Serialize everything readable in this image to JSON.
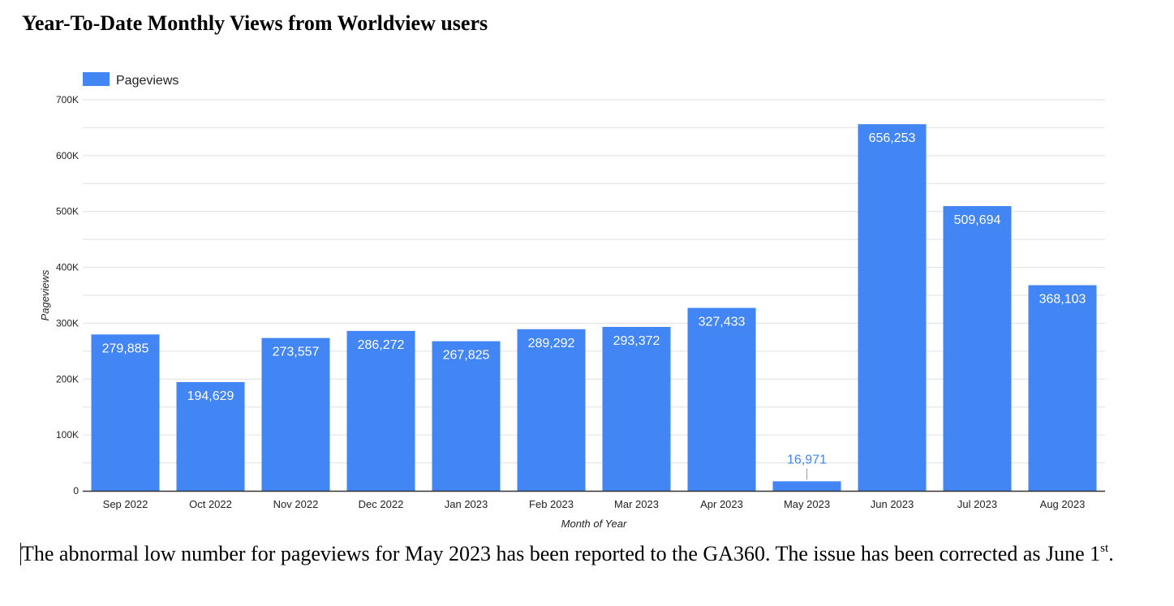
{
  "title": "Year-To-Date Monthly Views from Worldview users",
  "chart_data": {
    "type": "bar",
    "categories": [
      "Sep 2022",
      "Oct 2022",
      "Nov 2022",
      "Dec 2022",
      "Jan 2023",
      "Feb 2023",
      "Mar 2023",
      "Apr 2023",
      "May 2023",
      "Jun 2023",
      "Jul 2023",
      "Aug 2023"
    ],
    "series": [
      {
        "name": "Pageviews",
        "values": [
          279885,
          194629,
          273557,
          286272,
          267825,
          289292,
          293372,
          327433,
          16971,
          656253,
          509694,
          368103
        ],
        "labels": [
          "279,885",
          "194,629",
          "273,557",
          "286,272",
          "267,825",
          "289,292",
          "293,372",
          "327,433",
          "16,971",
          "656,253",
          "509,694",
          "368,103"
        ],
        "color": "#4285F4"
      }
    ],
    "xlabel": "Month of Year",
    "ylabel": "Pageviews",
    "ylim": [
      0,
      700000
    ],
    "yticks": [
      0,
      100000,
      200000,
      300000,
      400000,
      500000,
      600000,
      700000
    ],
    "ytick_labels": [
      "0",
      "100K",
      "200K",
      "300K",
      "400K",
      "500K",
      "600K",
      "700K"
    ],
    "grid": true,
    "legend": "top-left"
  },
  "note": {
    "text": "The abnormal low number for pageviews for May 2023 has been reported to the GA360. The issue has been corrected as June 1",
    "sup": "st",
    "end": "."
  }
}
